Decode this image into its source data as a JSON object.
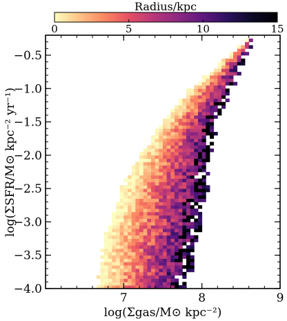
{
  "chart_data": {
    "type": "heatmap",
    "title": "",
    "xlabel": "log(Σgas/M⊙ kpc⁻²)",
    "ylabel": "log(ΣSFR/M⊙ kpc⁻² yr⁻¹)",
    "xlim": [
      6.0,
      9.0
    ],
    "ylim": [
      -4.0,
      -0.2
    ],
    "x_ticks": [
      7,
      8,
      9
    ],
    "y_ticks": [
      -4.0,
      -3.5,
      -3.0,
      -2.5,
      -2.0,
      -1.5,
      -1.0,
      -0.5
    ],
    "x_tick_labels": [
      "7",
      "8",
      "9"
    ],
    "y_tick_labels": [
      "−4.0",
      "−3.5",
      "−3.0",
      "−2.5",
      "−2.0",
      "−1.5",
      "−1.0",
      "−0.5"
    ],
    "bin_size": {
      "x": 0.05,
      "y": 0.05
    },
    "grid": false,
    "colorbar": {
      "label": "Radius/kpc",
      "range": [
        0,
        15
      ],
      "ticks": [
        0,
        5,
        10,
        15
      ],
      "tick_labels": [
        "0",
        "5",
        "10",
        "15"
      ],
      "colormap": "magma_r",
      "placement": "top"
    },
    "colormap_stops": [
      "#fcfdbf",
      "#fec287",
      "#fb8861",
      "#e55064",
      "#b73779",
      "#8c2981",
      "#5f187f",
      "#2c115f",
      "#0b0924",
      "#000004"
    ],
    "boundary": {
      "description": "binned relation; colour = mean galactocentric radius in kpc",
      "upper_edge": [
        {
          "y": -4.0,
          "x": 6.65
        },
        {
          "y": -3.5,
          "x": 6.72
        },
        {
          "y": -3.0,
          "x": 6.82
        },
        {
          "y": -2.5,
          "x": 6.98
        },
        {
          "y": -2.0,
          "x": 7.2
        },
        {
          "y": -1.5,
          "x": 7.5
        },
        {
          "y": -1.0,
          "x": 7.85
        },
        {
          "y": -0.5,
          "x": 8.35
        },
        {
          "y": -0.25,
          "x": 8.62
        }
      ],
      "lower_edge": [
        {
          "y": -4.0,
          "x": 7.78
        },
        {
          "y": -3.5,
          "x": 7.9
        },
        {
          "y": -3.0,
          "x": 8.0
        },
        {
          "y": -2.5,
          "x": 8.05
        },
        {
          "y": -2.0,
          "x": 8.1
        },
        {
          "y": -1.5,
          "x": 8.2
        },
        {
          "y": -1.0,
          "x": 8.38
        },
        {
          "y": -0.5,
          "x": 8.55
        },
        {
          "y": -0.25,
          "x": 8.65
        }
      ]
    }
  }
}
